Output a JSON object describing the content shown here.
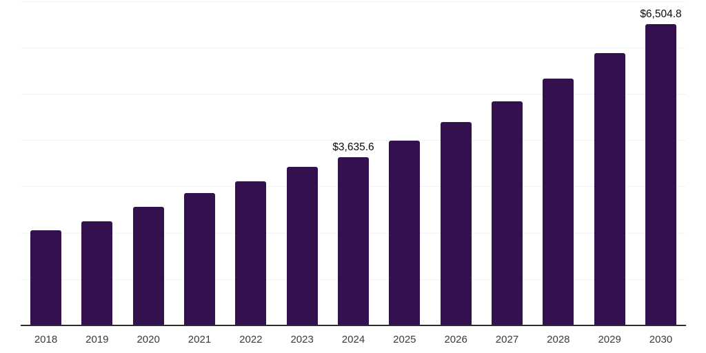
{
  "chart": {
    "background_color": "#ffffff",
    "bar_color": "#33114e",
    "gridline_color": "#f2f2f4",
    "axis_line_color": "#2b2b2b",
    "tick_label_color": "#3a3a3a",
    "data_label_color": "#0a0a0a"
  },
  "chart_data": {
    "type": "bar",
    "title": "",
    "xlabel": "",
    "ylabel": "",
    "categories": [
      "2018",
      "2019",
      "2020",
      "2021",
      "2022",
      "2023",
      "2024",
      "2025",
      "2026",
      "2027",
      "2028",
      "2029",
      "2030"
    ],
    "values": [
      2060,
      2250,
      2560,
      2860,
      3110,
      3420,
      3635.6,
      3990,
      4390,
      4830,
      5320,
      5880,
      6504.8
    ],
    "data_labels": [
      {
        "category": "2024",
        "text": "$3,635.6"
      },
      {
        "category": "2030",
        "text": "$6,504.8"
      }
    ],
    "ylim": [
      0,
      7000
    ],
    "gridline_step": 1000,
    "grid": "horizontal",
    "y_axis_tick_labels": "none",
    "legend": "none"
  }
}
